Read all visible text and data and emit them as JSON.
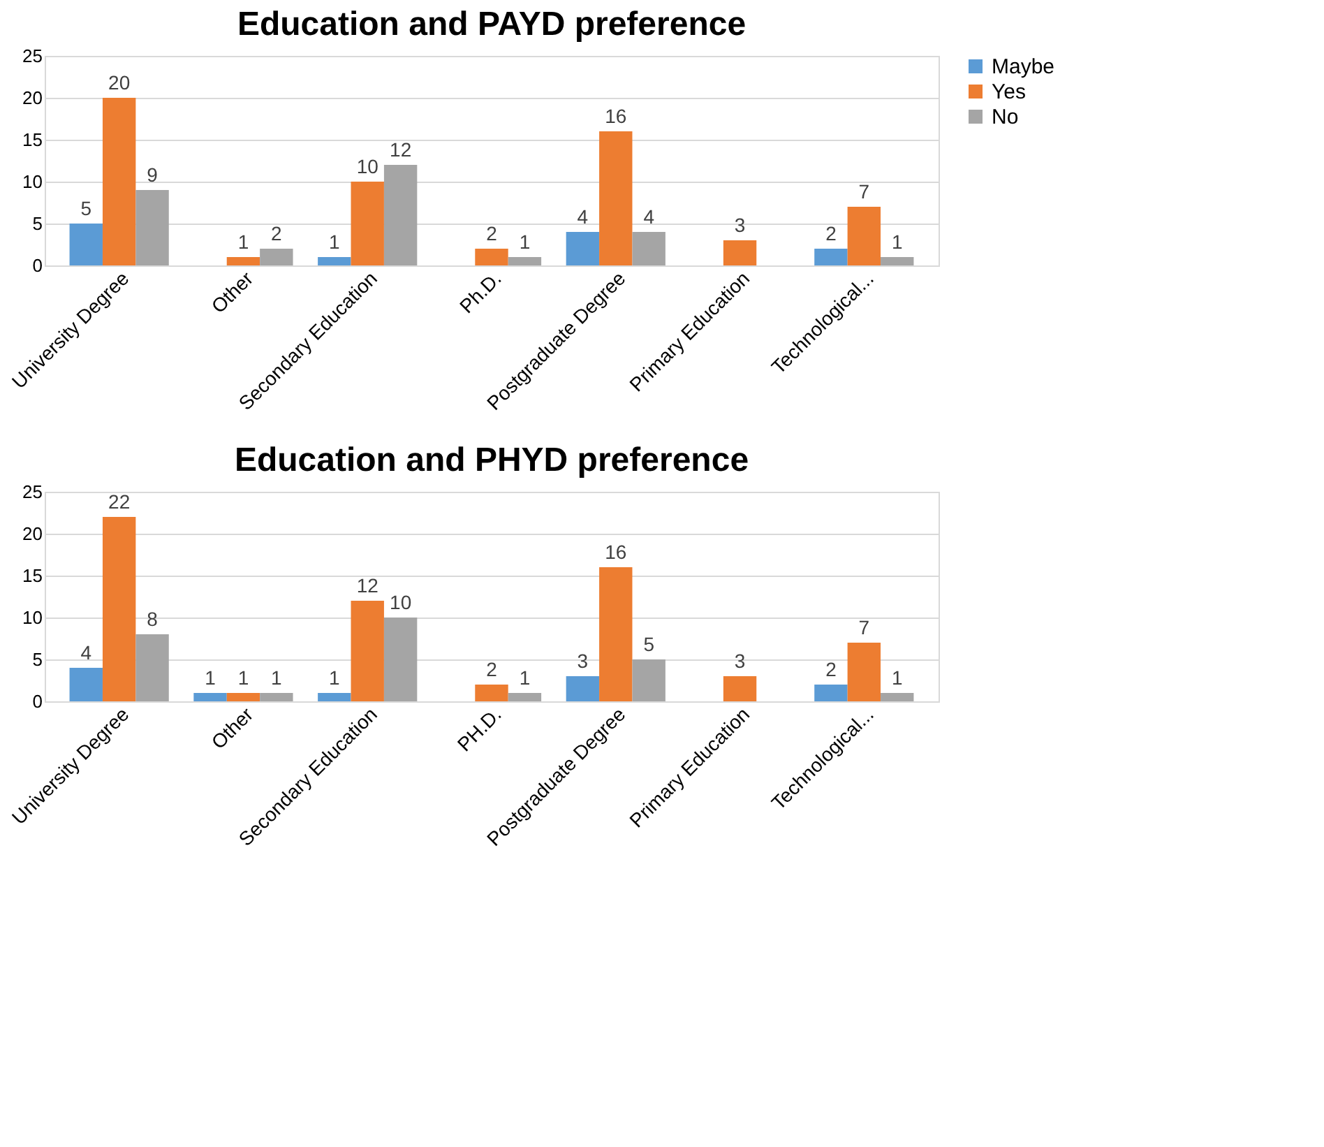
{
  "chart_data": [
    {
      "type": "bar",
      "title": "Education and PAYD preference",
      "categories": [
        "University Degree",
        "Other",
        "Secondary Education",
        "Ph.D.",
        "Postgraduate Degree",
        "Primary Education",
        "Technological..."
      ],
      "series": [
        {
          "name": "Maybe",
          "color": "#5b9bd5",
          "values": [
            5,
            null,
            1,
            null,
            4,
            null,
            2
          ]
        },
        {
          "name": "Yes",
          "color": "#ed7d31",
          "values": [
            20,
            1,
            10,
            2,
            16,
            3,
            7
          ]
        },
        {
          "name": "No",
          "color": "#a5a5a5",
          "values": [
            9,
            2,
            12,
            1,
            4,
            null,
            1
          ]
        }
      ],
      "ylim": [
        0,
        25
      ],
      "yticks": [
        0,
        5,
        10,
        15,
        20,
        25
      ],
      "grid": "y",
      "legend": "right",
      "data_labels": true
    },
    {
      "type": "bar",
      "title": "Education and PHYD preference",
      "categories": [
        "University Degree",
        "Other",
        "Secondary Education",
        "PH.D.",
        "Postgraduate Degree",
        "Primary Education",
        "Technological..."
      ],
      "series": [
        {
          "name": "Maybe",
          "color": "#5b9bd5",
          "values": [
            4,
            1,
            1,
            null,
            3,
            null,
            2
          ]
        },
        {
          "name": "Yes",
          "color": "#ed7d31",
          "values": [
            22,
            1,
            12,
            2,
            16,
            3,
            7
          ]
        },
        {
          "name": "No",
          "color": "#a5a5a5",
          "values": [
            8,
            1,
            10,
            1,
            5,
            null,
            1
          ]
        }
      ],
      "ylim": [
        0,
        25
      ],
      "yticks": [
        0,
        5,
        10,
        15,
        20,
        25
      ],
      "grid": "y",
      "legend": "right",
      "data_labels": true
    }
  ]
}
